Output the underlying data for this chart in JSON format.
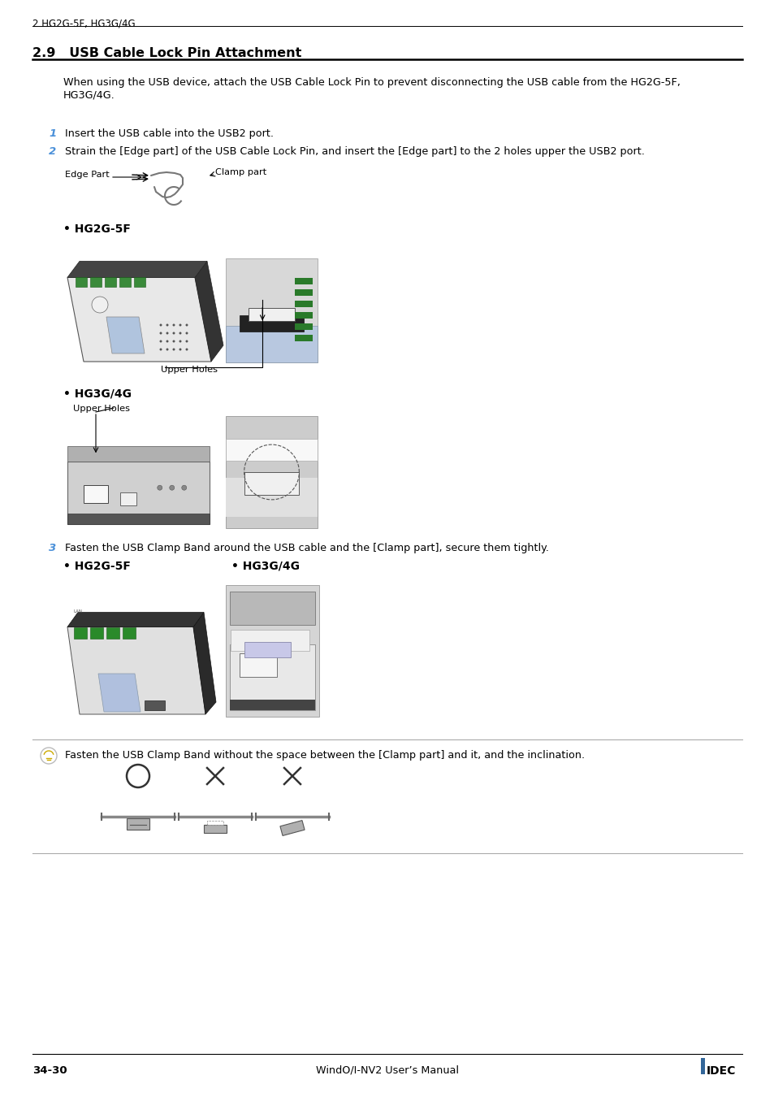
{
  "bg_color": "#ffffff",
  "header_text": "2 HG2G-5F, HG3G/4G",
  "section_title": "2.9   USB Cable Lock Pin Attachment",
  "intro_text": "When using the USB device, attach the USB Cable Lock Pin to prevent disconnecting the USB cable from the HG2G-5F,\nHG3G/4G.",
  "step1_num": "1",
  "step1_text": "Insert the USB cable into the USB2 port.",
  "step2_num": "2",
  "step2_text": "Strain the [Edge part] of the USB Cable Lock Pin, and insert the [Edge part] to the 2 holes upper the USB2 port.",
  "edge_part_label": "Edge Part",
  "clamp_part_label": "Clamp part",
  "hg2g5f_label": "• HG2G-5F",
  "hg3g4g_label": "• HG3G/4G",
  "upper_holes_label1": "Upper Holes",
  "upper_holes_label2": "Upper Holes",
  "step3_num": "3",
  "step3_text": "Fasten the USB Clamp Band around the USB cable and the [Clamp part], secure them tightly.",
  "hg2g5f_label2": "• HG2G-5F",
  "hg3g4g_label2": "• HG3G/4G",
  "tip_text": "Fasten the USB Clamp Band without the space between the [Clamp part] and it, and the inclination.",
  "footer_left": "34-30",
  "footer_center": "WindO/I-NV2 User’s Manual",
  "footer_right": "IDEC",
  "step_num_color": "#4a90d9",
  "tip_line_color": "#aaaaaa"
}
